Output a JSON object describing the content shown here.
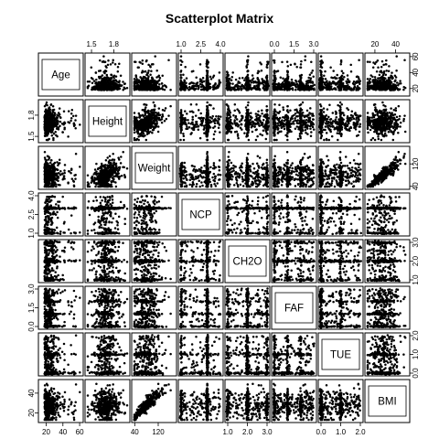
{
  "chart_data": {
    "type": "scatter",
    "title": "Scatterplot Matrix",
    "variables": [
      {
        "name": "Age",
        "range": [
          14,
          61
        ],
        "ticks": [
          20,
          40,
          60
        ],
        "tick_labels": [
          "20",
          "40",
          "60"
        ]
      },
      {
        "name": "Height",
        "range": [
          1.45,
          1.98
        ],
        "ticks": [
          1.5,
          1.8
        ],
        "tick_labels": [
          "1.5",
          "1.8"
        ]
      },
      {
        "name": "Weight",
        "range": [
          39,
          173
        ],
        "ticks": [
          40,
          120
        ],
        "tick_labels": [
          "40",
          "120"
        ]
      },
      {
        "name": "NCP",
        "range": [
          1,
          4
        ],
        "ticks": [
          1.0,
          2.5,
          4.0
        ],
        "tick_labels": [
          "1.0",
          "2.5",
          "4.0"
        ]
      },
      {
        "name": "CH2O",
        "range": [
          1,
          3
        ],
        "ticks": [
          1.0,
          2.0,
          3.0
        ],
        "tick_labels": [
          "1.0",
          "2.0",
          "3.0"
        ]
      },
      {
        "name": "FAF",
        "range": [
          0,
          3
        ],
        "ticks": [
          0.0,
          1.5,
          3.0
        ],
        "tick_labels": [
          "0.0",
          "1.5",
          "3.0"
        ]
      },
      {
        "name": "TUE",
        "range": [
          0,
          2
        ],
        "ticks": [
          0.0,
          1.0,
          2.0
        ],
        "tick_labels": [
          "0.0",
          "1.0",
          "2.0"
        ]
      },
      {
        "name": "BMI",
        "range": [
          13,
          51
        ],
        "ticks": [
          20,
          40
        ],
        "tick_labels": [
          "20",
          "40"
        ]
      }
    ],
    "axes_layout": {
      "top": [
        1,
        3,
        5,
        7
      ],
      "bottom": [
        0,
        2,
        4,
        6
      ],
      "left": [
        1,
        3,
        5,
        7
      ],
      "right": [
        0,
        2,
        4,
        6
      ]
    },
    "point_color": "#000000",
    "grid": false,
    "legend": "none"
  }
}
